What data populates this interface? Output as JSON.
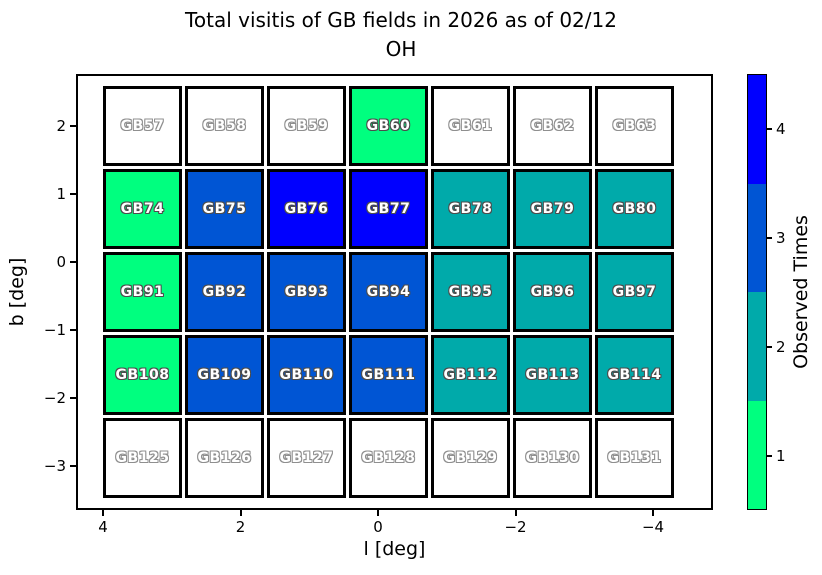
{
  "title": {
    "line1": "Total visitis of GB fields in 2026 as of 02/12",
    "line2": "OH"
  },
  "axes": {
    "xlabel": "l [deg]",
    "ylabel": "b [deg]",
    "x_tick_labels": [
      "4",
      "2",
      "0",
      "−2",
      "−4"
    ],
    "y_tick_labels": [
      "2",
      "1",
      "0",
      "−1",
      "−2",
      "−3"
    ]
  },
  "colorbar": {
    "label": "Observed Times",
    "tick_labels": [
      "1",
      "2",
      "3",
      "4"
    ]
  },
  "chart_data": {
    "type": "heatmap",
    "title": "Total visitis of GB fields in 2026 as of 02/12 OH",
    "xlabel": "l [deg]",
    "ylabel": "b [deg]",
    "x_ticks": [
      4,
      2,
      0,
      -2,
      -4
    ],
    "y_ticks": [
      2,
      1,
      0,
      -1,
      -2,
      -3
    ],
    "x_axis_reversed": true,
    "grid_shape": {
      "rows": 5,
      "cols": 7
    },
    "colorbar_label": "Observed Times",
    "colorbar_ticks": [
      1,
      2,
      3,
      4
    ],
    "value_colors": {
      "0": "#ffffff",
      "1": "#00ff7f",
      "2": "#00aaaa",
      "3": "#0055d4",
      "4": "#0000ff"
    },
    "rows": [
      {
        "fields": [
          "GB57",
          "GB58",
          "GB59",
          "GB60",
          "GB61",
          "GB62",
          "GB63"
        ],
        "values": [
          0,
          0,
          0,
          1,
          0,
          0,
          0
        ]
      },
      {
        "fields": [
          "GB74",
          "GB75",
          "GB76",
          "GB77",
          "GB78",
          "GB79",
          "GB80"
        ],
        "values": [
          1,
          3,
          4,
          4,
          2,
          2,
          2
        ]
      },
      {
        "fields": [
          "GB91",
          "GB92",
          "GB93",
          "GB94",
          "GB95",
          "GB96",
          "GB97"
        ],
        "values": [
          1,
          3,
          3,
          3,
          2,
          2,
          2
        ]
      },
      {
        "fields": [
          "GB108",
          "GB109",
          "GB110",
          "GB111",
          "GB112",
          "GB113",
          "GB114"
        ],
        "values": [
          1,
          3,
          3,
          3,
          2,
          2,
          2
        ]
      },
      {
        "fields": [
          "GB125",
          "GB126",
          "GB127",
          "GB128",
          "GB129",
          "GB130",
          "GB131"
        ],
        "values": [
          0,
          0,
          0,
          0,
          0,
          0,
          0
        ]
      }
    ]
  }
}
